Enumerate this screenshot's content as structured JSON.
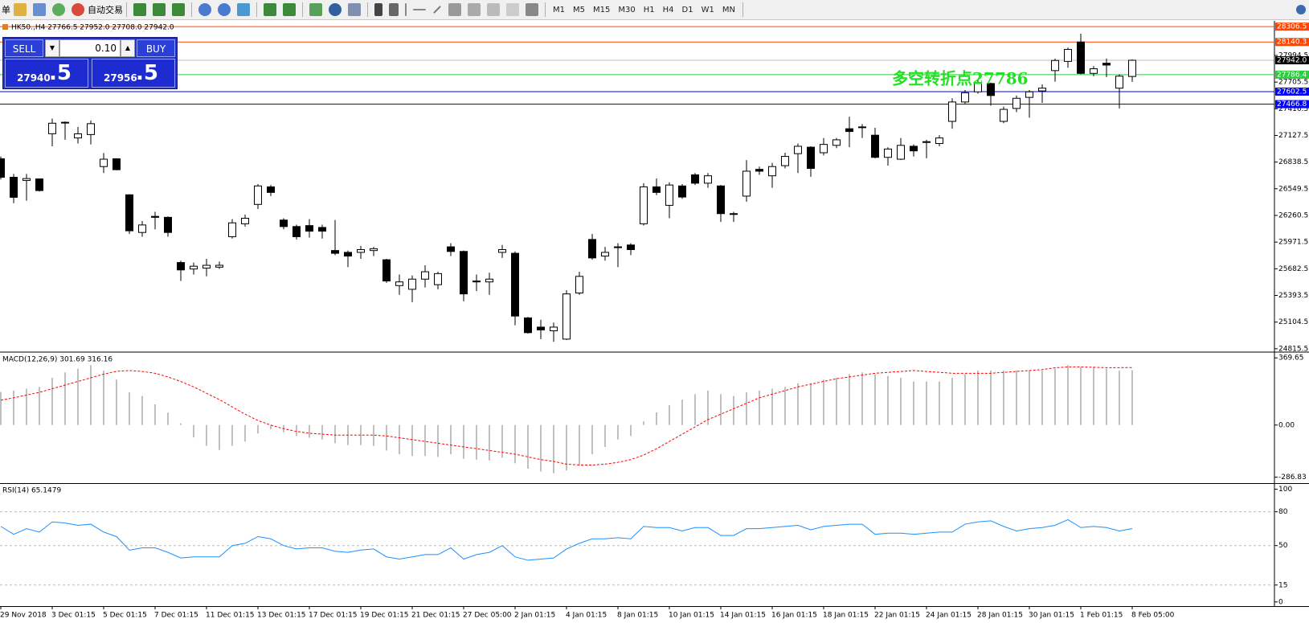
{
  "toolbar": {
    "menu": "单",
    "auto_trading": "自动交易",
    "timeframes": [
      "M1",
      "M5",
      "M15",
      "M30",
      "H1",
      "H4",
      "D1",
      "W1",
      "MN"
    ]
  },
  "trade_panel": {
    "sell": "SELL",
    "lots": "0.10",
    "buy": "BUY",
    "sell_price": "27940",
    "sell_point": ".5",
    "buy_price": "27956",
    "buy_point": ".5"
  },
  "chart_data": [
    {
      "type": "candlestick",
      "title": "HK50.,H4  27766.5 27952.0 27708.0 27942.0",
      "up_color": "#ffffff",
      "down_color": "#000000",
      "open": [
        26874,
        26674,
        26640,
        26656,
        27146,
        27270,
        27100,
        27137,
        26790,
        26874,
        26484,
        26076,
        26250,
        26240,
        25750,
        25680,
        25690,
        25700,
        26030,
        26170,
        26380,
        26570,
        26210,
        26140,
        26150,
        26130,
        25880,
        25860,
        25860,
        25880,
        25780,
        25500,
        25460,
        25570,
        25510,
        25920,
        25870,
        25550,
        25540,
        25860,
        25850,
        25150,
        25050,
        25010,
        24920,
        25420,
        26000,
        25820,
        25920,
        25940,
        26170,
        26570,
        26370,
        26580,
        26700,
        26610,
        26580,
        26280,
        26470,
        26760,
        26690,
        26800,
        26930,
        27000,
        26940,
        27020,
        27200,
        27220,
        27130,
        26890,
        26870,
        27010,
        27060,
        27040,
        27280,
        27490,
        27600,
        27690,
        27280,
        27420,
        27540,
        27610,
        27830,
        27930,
        28140,
        27800,
        27910,
        27640,
        27766.5
      ],
      "high": [
        26900,
        26710,
        26710,
        26660,
        27310,
        27280,
        27220,
        27290,
        26937,
        26880,
        26490,
        26200,
        26300,
        26250,
        25770,
        25750,
        25790,
        25760,
        26220,
        26270,
        26600,
        26590,
        26230,
        26160,
        26220,
        26160,
        26210,
        25880,
        25930,
        25920,
        25790,
        25620,
        25610,
        25720,
        25650,
        25960,
        25880,
        25620,
        25640,
        25940,
        25870,
        25160,
        25130,
        25100,
        25450,
        25650,
        26060,
        25920,
        25960,
        25960,
        26610,
        26660,
        26620,
        26600,
        26720,
        26720,
        26590,
        26300,
        26860,
        26790,
        26830,
        26940,
        27040,
        27010,
        27100,
        27100,
        27330,
        27250,
        27210,
        27000,
        27100,
        27030,
        27080,
        27130,
        27530,
        27620,
        27730,
        27700,
        27440,
        27560,
        27620,
        27680,
        27960,
        28080,
        28230,
        27880,
        27960,
        27790,
        27952
      ],
      "low": [
        26650,
        26393,
        26420,
        26520,
        27010,
        27080,
        27040,
        27030,
        26720,
        26750,
        26060,
        26030,
        26110,
        26030,
        25550,
        25620,
        25600,
        25680,
        26010,
        26140,
        26330,
        26470,
        26110,
        26000,
        26020,
        26010,
        25830,
        25700,
        25790,
        25820,
        25530,
        25400,
        25320,
        25480,
        25460,
        25820,
        25330,
        25440,
        25400,
        25800,
        25070,
        24980,
        24920,
        24890,
        24910,
        25400,
        25780,
        25770,
        25700,
        25830,
        26150,
        26480,
        26230,
        26440,
        26590,
        26560,
        26190,
        26190,
        26410,
        26700,
        26560,
        26770,
        26720,
        26680,
        26910,
        26990,
        27000,
        27100,
        26880,
        26800,
        26860,
        26900,
        26880,
        27010,
        27200,
        27470,
        27580,
        27450,
        27260,
        27380,
        27320,
        27480,
        27710,
        27860,
        27790,
        27770,
        27760,
        27420,
        27708
      ],
      "close": [
        26674,
        26457,
        26660,
        26530,
        27260,
        27265,
        27145,
        27255,
        26870,
        26756,
        26094,
        26157,
        26240,
        26076,
        25670,
        25710,
        25720,
        25720,
        26180,
        26230,
        26580,
        26510,
        26140,
        26030,
        26090,
        26090,
        25850,
        25820,
        25890,
        25900,
        25550,
        25540,
        25570,
        25650,
        25630,
        25870,
        25410,
        25540,
        25570,
        25890,
        25170,
        24990,
        25020,
        25050,
        25410,
        25600,
        25800,
        25860,
        25920,
        25890,
        26570,
        26510,
        26590,
        26460,
        26610,
        26690,
        26280,
        26280,
        26740,
        26740,
        26790,
        26900,
        27010,
        26770,
        27030,
        27080,
        27170,
        27220,
        26890,
        26980,
        27020,
        26960,
        27060,
        27100,
        27490,
        27590,
        27700,
        27560,
        27410,
        27530,
        27600,
        27640,
        27940,
        28060,
        27800,
        27850,
        27890,
        27770,
        27942
      ],
      "ylim": [
        24788,
        28360
      ],
      "yticks": [
        24815.5,
        25104.5,
        25393.5,
        25682.5,
        25971.5,
        26260.5,
        26549.5,
        26838.5,
        27127.5,
        27416.5,
        27705.5,
        27994.5
      ],
      "levels": [
        {
          "value": 28306.5,
          "color": "#ff4500"
        },
        {
          "value": 28140.3,
          "color": "#ff4500"
        },
        {
          "value": 27942,
          "label": "27942.0",
          "color": "#000000"
        },
        {
          "value": 27786.4,
          "color": "#2ecc40"
        },
        {
          "value": 27602.5,
          "color": "#0000ff"
        },
        {
          "value": 27466.8,
          "color": "#0000ff"
        }
      ],
      "annotation": {
        "text": "多空转折点27786",
        "color": "#22e022"
      }
    },
    {
      "type": "macd",
      "title": "MACD(12,26,9) 301.69 316.16",
      "series": [
        {
          "color": "#c0c0c0",
          "values": [
            182,
            190,
            200,
            210,
            260,
            290,
            310,
            330,
            300,
            250,
            180,
            160,
            114,
            68,
            10,
            -68,
            -114,
            -137,
            -114,
            -91,
            -46,
            -23,
            -40,
            -60,
            -70,
            -80,
            -100,
            -110,
            -110,
            -115,
            -140,
            -160,
            -170,
            -170,
            -175,
            -160,
            -185,
            -190,
            -195,
            -180,
            -210,
            -240,
            -255,
            -265,
            -250,
            -220,
            -160,
            -120,
            -80,
            -60,
            20,
            70,
            110,
            140,
            170,
            190,
            170,
            160,
            180,
            190,
            200,
            210,
            230,
            230,
            250,
            260,
            280,
            290,
            280,
            270,
            260,
            240,
            240,
            240,
            260,
            280,
            300,
            300,
            300,
            300,
            300,
            300,
            310,
            330,
            320,
            320,
            310,
            300,
            301.69
          ]
        },
        {
          "color": "#ff0000",
          "values": [
            137,
            150,
            165,
            180,
            200,
            220,
            240,
            260,
            280,
            296,
            300,
            295,
            285,
            265,
            240,
            210,
            175,
            140,
            100,
            60,
            25,
            0,
            -20,
            -35,
            -45,
            -50,
            -55,
            -55,
            -55,
            -55,
            -60,
            -70,
            -80,
            -90,
            -100,
            -110,
            -120,
            -130,
            -140,
            -150,
            -160,
            -175,
            -190,
            -200,
            -215,
            -220,
            -220,
            -215,
            -205,
            -190,
            -165,
            -130,
            -90,
            -50,
            -10,
            30,
            60,
            90,
            120,
            150,
            170,
            190,
            210,
            225,
            240,
            255,
            265,
            275,
            285,
            290,
            295,
            300,
            295,
            290,
            285,
            285,
            285,
            285,
            290,
            295,
            300,
            305,
            315,
            320,
            320,
            318,
            316,
            316,
            316.16
          ]
        }
      ],
      "ylim": [
        -315,
        397
      ],
      "yticks": [
        -286.83,
        {
          "value": 0,
          "label": "0.00"
        },
        369.65
      ]
    },
    {
      "type": "line",
      "title": "RSI(14) 65.1479",
      "color": "#1e90ff",
      "values": [
        67,
        60,
        65,
        62,
        71,
        70,
        68,
        69,
        62,
        58,
        46,
        48,
        48,
        44,
        39,
        40,
        40,
        40,
        50,
        52,
        58,
        56,
        50,
        47,
        48,
        48,
        45,
        44,
        46,
        47,
        40,
        38,
        40,
        42,
        42,
        48,
        38,
        42,
        44,
        50,
        40,
        37,
        38,
        39,
        47,
        52,
        56,
        56,
        57,
        56,
        67,
        66,
        66,
        63,
        66,
        66,
        59,
        59,
        65,
        65,
        66,
        67,
        68,
        64,
        67,
        68,
        69,
        69,
        60,
        61,
        61,
        60,
        61,
        62,
        62,
        69,
        71,
        72,
        67,
        63,
        65,
        66,
        68,
        73,
        66,
        67,
        66,
        63,
        65.1479
      ],
      "ylim": [
        -3,
        104
      ],
      "yticks": [
        0,
        15,
        50,
        80,
        100
      ],
      "level_lines": [
        15,
        50,
        80
      ],
      "categories": [
        "29 Nov 2018",
        null,
        null,
        null,
        "3 Dec 01:15",
        null,
        null,
        null,
        "5 Dec 01:15",
        null,
        null,
        null,
        "7 Dec 01:15",
        null,
        null,
        null,
        "11 Dec 01:15",
        null,
        null,
        null,
        "13 Dec 01:15",
        null,
        null,
        null,
        "17 Dec 01:15",
        null,
        null,
        null,
        "19 Dec 01:15",
        null,
        null,
        null,
        "21 Dec 01:15",
        null,
        null,
        null,
        "27 Dec 05:00",
        null,
        null,
        null,
        "2 Jan 01:15",
        null,
        null,
        null,
        "4 Jan 01:15",
        null,
        null,
        null,
        "8 Jan 01:15",
        null,
        null,
        null,
        "10 Jan 01:15",
        null,
        null,
        null,
        "14 Jan 01:15",
        null,
        null,
        null,
        "16 Jan 01:15",
        null,
        null,
        null,
        "18 Jan 01:15",
        null,
        null,
        null,
        "22 Jan 01:15",
        null,
        null,
        null,
        "24 Jan 01:15",
        null,
        null,
        null,
        "28 Jan 01:15",
        null,
        null,
        null,
        "30 Jan 01:15",
        null,
        null,
        null,
        "1 Feb 01:15",
        null,
        null,
        null,
        "8 Feb 05:00"
      ]
    }
  ]
}
